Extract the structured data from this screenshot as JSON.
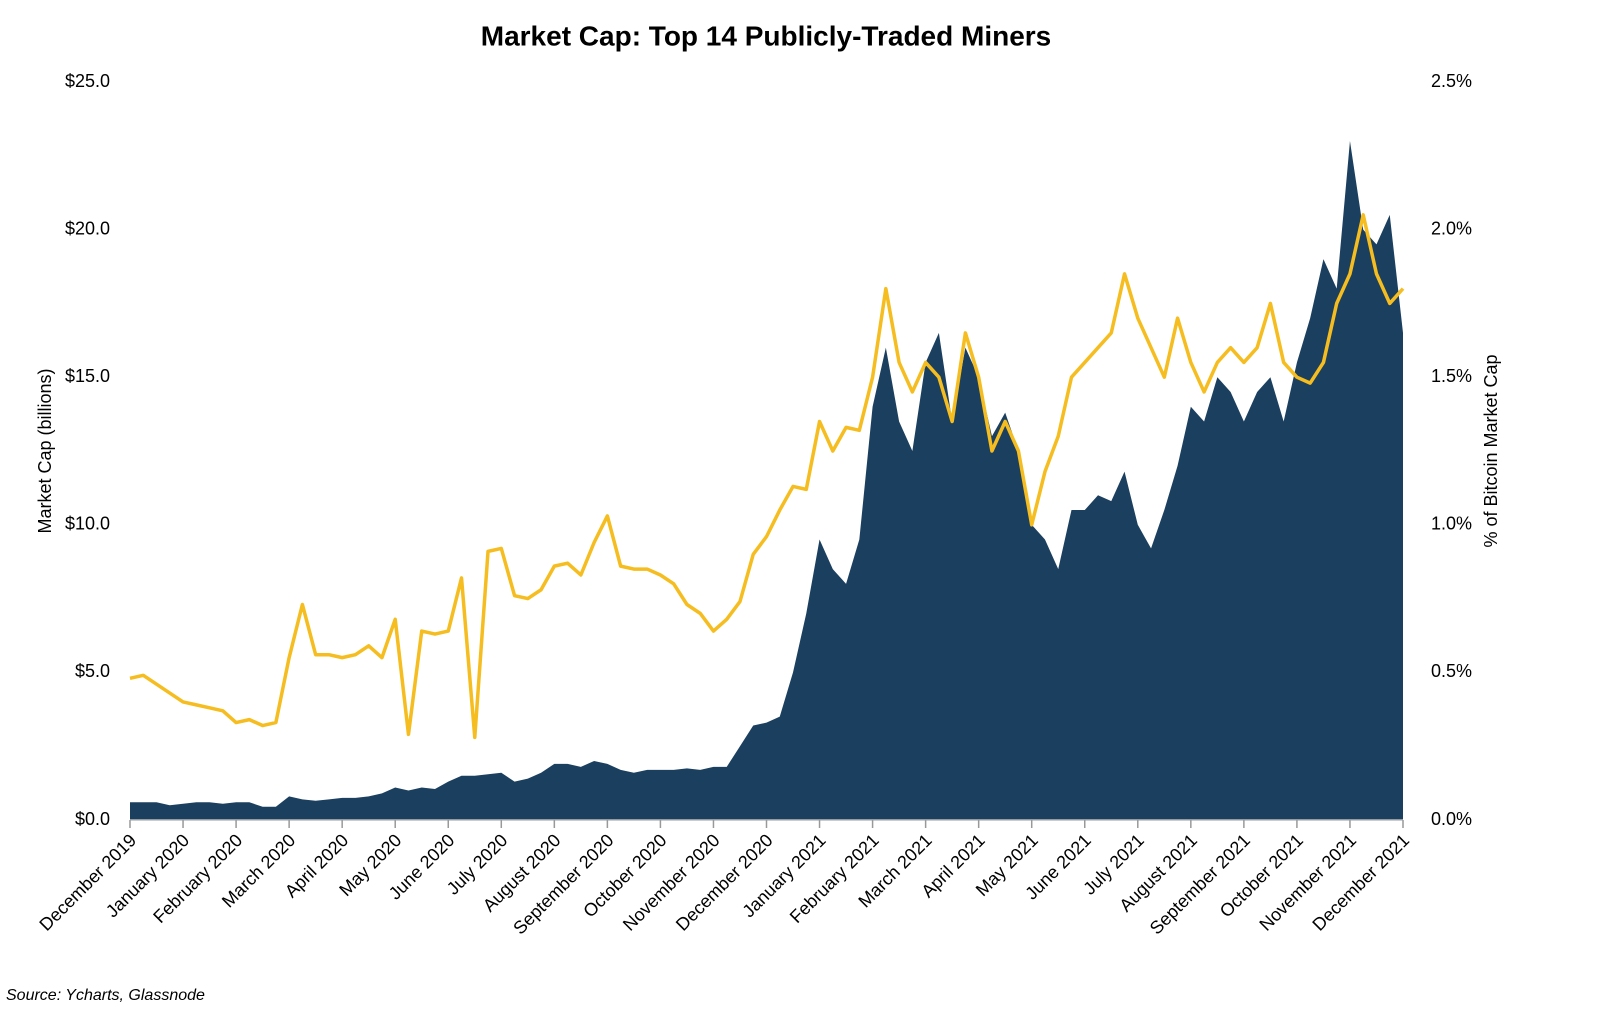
{
  "chart_data": {
    "type": "area-line",
    "title": "Market Cap: Top 14 Publicly-Traded Miners",
    "y_label": "Market Cap (billions)",
    "y2_label": "% of Bitcoin Market Cap",
    "source": "Source: Ycharts, Glassnode",
    "categories": [
      "December 2019",
      null,
      null,
      null,
      "January 2020",
      null,
      null,
      null,
      "February 2020",
      null,
      null,
      null,
      "March 2020",
      null,
      null,
      null,
      "April 2020",
      null,
      null,
      null,
      "May 2020",
      null,
      null,
      null,
      "June 2020",
      null,
      null,
      null,
      "July 2020",
      null,
      null,
      null,
      "August 2020",
      null,
      null,
      null,
      "September 2020",
      null,
      null,
      null,
      "October 2020",
      null,
      null,
      null,
      "November 2020",
      null,
      null,
      null,
      "December 2020",
      null,
      null,
      null,
      "January 2021",
      null,
      null,
      null,
      "February 2021",
      null,
      null,
      null,
      "March 2021",
      null,
      null,
      null,
      "April 2021",
      null,
      null,
      null,
      "May 2021",
      null,
      null,
      null,
      "June 2021",
      null,
      null,
      null,
      "July 2021",
      null,
      null,
      null,
      "August 2021",
      null,
      null,
      null,
      "September 2021",
      null,
      null,
      null,
      "October 2021",
      null,
      null,
      null,
      "November 2021",
      null,
      null,
      null,
      "December 2021"
    ],
    "series": [
      {
        "type": "area",
        "color": "#1b3f5f",
        "axis": "y",
        "values": [
          0.6,
          0.6,
          0.6,
          0.5,
          0.55,
          0.6,
          0.6,
          0.55,
          0.6,
          0.6,
          0.45,
          0.45,
          0.8,
          0.7,
          0.65,
          0.7,
          0.75,
          0.75,
          0.8,
          0.9,
          1.1,
          1.0,
          1.1,
          1.05,
          1.3,
          1.5,
          1.5,
          1.55,
          1.6,
          1.3,
          1.4,
          1.6,
          1.9,
          1.9,
          1.8,
          2.0,
          1.9,
          1.7,
          1.6,
          1.7,
          1.7,
          1.7,
          1.75,
          1.7,
          1.8,
          1.8,
          2.5,
          3.2,
          3.3,
          3.5,
          5.0,
          7.0,
          9.5,
          8.5,
          8.0,
          9.5,
          14.0,
          16.0,
          13.5,
          12.5,
          15.5,
          16.5,
          13.5,
          16.0,
          15.0,
          13.0,
          13.8,
          12.5,
          10.0,
          9.5,
          8.5,
          10.5,
          10.5,
          11.0,
          10.8,
          11.8,
          10.0,
          9.2,
          10.5,
          12.0,
          14.0,
          13.5,
          15.0,
          14.5,
          13.5,
          14.5,
          15.0,
          13.5,
          15.5,
          17.0,
          19.0,
          18.0,
          23.0,
          20.0,
          19.5,
          20.5,
          16.5
        ]
      },
      {
        "type": "line",
        "color": "#f5bd1f",
        "axis": "y2",
        "values": [
          0.48,
          0.49,
          0.46,
          0.43,
          0.4,
          0.39,
          0.38,
          0.37,
          0.33,
          0.34,
          0.32,
          0.33,
          0.55,
          0.73,
          0.56,
          0.56,
          0.55,
          0.56,
          0.59,
          0.55,
          0.68,
          0.29,
          0.64,
          0.63,
          0.64,
          0.82,
          0.28,
          0.91,
          0.92,
          0.76,
          0.75,
          0.78,
          0.86,
          0.87,
          0.83,
          0.94,
          1.03,
          0.86,
          0.85,
          0.85,
          0.83,
          0.8,
          0.73,
          0.7,
          0.64,
          0.68,
          0.74,
          0.9,
          0.96,
          1.05,
          1.13,
          1.12,
          1.35,
          1.25,
          1.33,
          1.32,
          1.5,
          1.8,
          1.55,
          1.45,
          1.55,
          1.5,
          1.35,
          1.65,
          1.5,
          1.25,
          1.35,
          1.25,
          1.0,
          1.18,
          1.3,
          1.5,
          1.55,
          1.6,
          1.65,
          1.85,
          1.7,
          1.6,
          1.5,
          1.7,
          1.55,
          1.45,
          1.55,
          1.6,
          1.55,
          1.6,
          1.75,
          1.55,
          1.5,
          1.48,
          1.55,
          1.75,
          1.85,
          2.05,
          1.85,
          1.75,
          1.8
        ]
      }
    ],
    "ylim": [
      0,
      25
    ],
    "yticks": [
      {
        "value": 0,
        "label": "$0.0"
      },
      {
        "value": 5,
        "label": "$5.0"
      },
      {
        "value": 10,
        "label": "$10.0"
      },
      {
        "value": 15,
        "label": "$15.0"
      },
      {
        "value": 20,
        "label": "$20.0"
      },
      {
        "value": 25,
        "label": "$25.0"
      }
    ],
    "y2lim": [
      0,
      2.5
    ],
    "y2ticks": [
      {
        "value": 0,
        "label": "0.0%"
      },
      {
        "value": 0.5,
        "label": "0.5%"
      },
      {
        "value": 1,
        "label": "1.0%"
      },
      {
        "value": 1.5,
        "label": "1.5%"
      },
      {
        "value": 2,
        "label": "2.0%"
      },
      {
        "value": 2.5,
        "label": "2.5%"
      }
    ],
    "grid": false
  }
}
